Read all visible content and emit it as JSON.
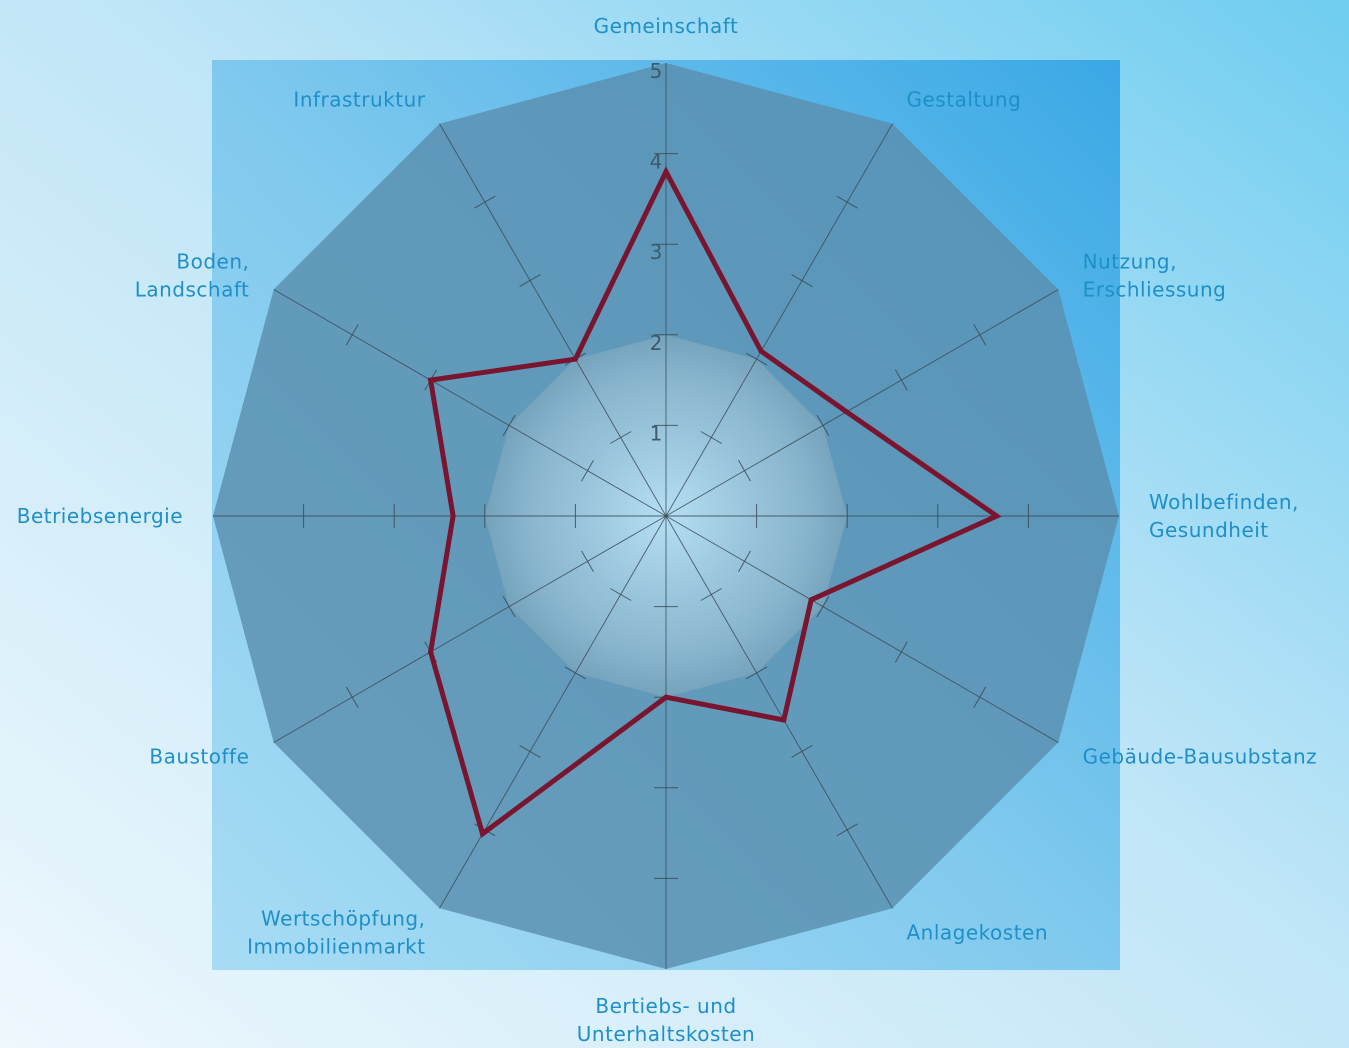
{
  "chart_data": {
    "type": "radar",
    "rmax": 5,
    "ticks": [
      1,
      2,
      3,
      4,
      5
    ],
    "tick_labels": [
      "1",
      "2",
      "3",
      "4",
      "5"
    ],
    "highlight_level": 2,
    "axes": [
      {
        "label": "Gemeinschaft",
        "lines": [
          "Gemeinschaft"
        ],
        "value": 3.8
      },
      {
        "label": "Gestaltung",
        "lines": [
          "Gestaltung"
        ],
        "value": 2.1
      },
      {
        "label": "Nutzung, Erschliessung",
        "lines": [
          "Nutzung,",
          "Erschliessung"
        ],
        "value": 2.3
      },
      {
        "label": "Wohlbefinden, Gesundheit",
        "lines": [
          "Wohlbefinden,",
          "Gesundheit"
        ],
        "value": 3.65
      },
      {
        "label": "Gebäude-Bausubstanz",
        "lines": [
          "Gebäude-Bausubstanz"
        ],
        "value": 1.85
      },
      {
        "label": "Anlagekosten",
        "lines": [
          "Anlagekosten"
        ],
        "value": 2.6
      },
      {
        "label": "Bertiebs- und Unterhaltskosten",
        "lines": [
          "Bertiebs- und",
          "Unterhaltskosten"
        ],
        "value": 2.0
      },
      {
        "label": "Wertschöpfung, Immobilienmarkt",
        "lines": [
          "Wertschöpfung,",
          "Immobilienmarkt"
        ],
        "value": 4.05
      },
      {
        "label": "Baustoffe",
        "lines": [
          "Baustoffe"
        ],
        "value": 3.0
      },
      {
        "label": "Betriebsenergie",
        "lines": [
          "Betriebsenergie"
        ],
        "value": 2.35
      },
      {
        "label": "Boden, Landschaft",
        "lines": [
          "Boden,",
          "Landschaft"
        ],
        "value": 3.0
      },
      {
        "label": "Infrastruktur",
        "lines": [
          "Infrastruktur"
        ],
        "value": 2.0
      }
    ],
    "grid": true,
    "colors": {
      "line": "#7a1530",
      "label": "#1e8fc8",
      "tick_label": "#3f5b6b",
      "outer_fill": "#5a8fae",
      "inner_fill": "#6f9cb8",
      "square_fill": "#48b0e8",
      "grid": "#3a4a56"
    }
  }
}
